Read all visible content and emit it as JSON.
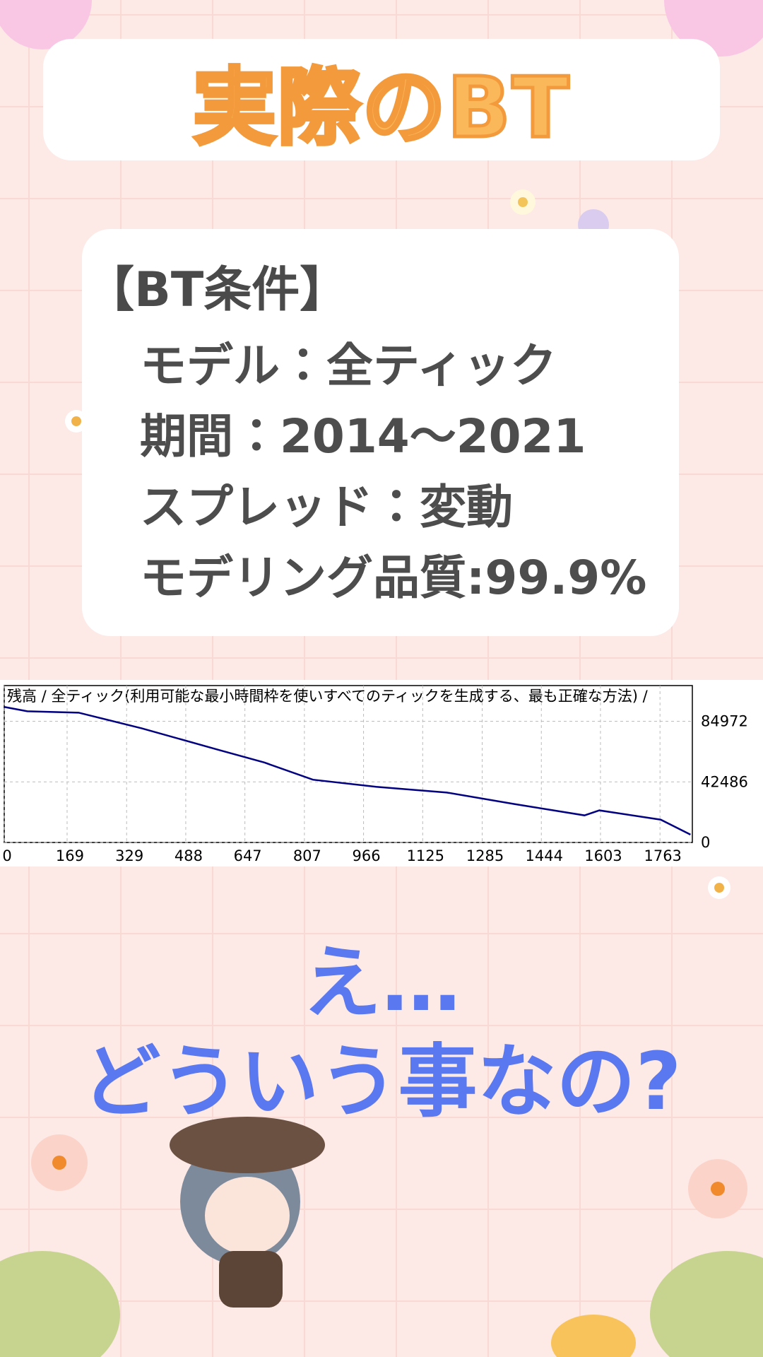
{
  "title": "実際のBT",
  "conditions": {
    "heading": "【BT条件】",
    "items": [
      "モデル：全ティック",
      "期間：2014～2021",
      "スプレッド：変動",
      "モデリング品質:99.9%"
    ]
  },
  "chart_data": {
    "type": "line",
    "title": "残高 / 全ティック(利用可能な最小時間枠を使いすべてのティックを生成する、最も正確な方法) /",
    "x": [
      0,
      62,
      200,
      370,
      575,
      700,
      830,
      1000,
      1190,
      1370,
      1560,
      1600,
      1765,
      1845
    ],
    "series": [
      {
        "color": "#000080",
        "values": [
          95000,
          92000,
          91000,
          80000,
          65000,
          56000,
          44000,
          39000,
          35000,
          27000,
          19000,
          22500,
          16000,
          5500
        ]
      }
    ],
    "xlim": [
      0,
      1850
    ],
    "xticks": [
      0,
      169,
      329,
      488,
      647,
      807,
      966,
      1125,
      1285,
      1444,
      1603,
      1763
    ],
    "ylim": [
      0,
      110000
    ],
    "yticks": [
      0,
      42486,
      84972
    ],
    "grid": true
  },
  "caption": [
    "え…",
    "どういう事なの?"
  ]
}
